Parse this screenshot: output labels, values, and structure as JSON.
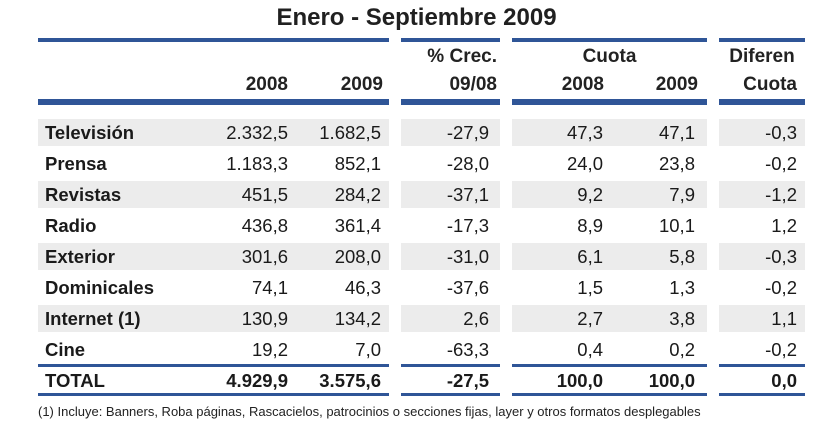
{
  "title": "Enero - Septiembre 2009",
  "headers": {
    "y2008": "2008",
    "y2009": "2009",
    "crec_top": "% Crec.",
    "crec_bottom": "09/08",
    "cuota": "Cuota",
    "cuota_2008": "2008",
    "cuota_2009": "2009",
    "dif_top": "Diferen",
    "dif_bottom": "Cuota"
  },
  "rows": [
    {
      "label": "Televisión",
      "v2008": "2.332,5",
      "v2009": "1.682,5",
      "crec": "-27,9",
      "c2008": "47,3",
      "c2009": "47,1",
      "dif": "-0,3"
    },
    {
      "label": "Prensa",
      "v2008": "1.183,3",
      "v2009": "852,1",
      "crec": "-28,0",
      "c2008": "24,0",
      "c2009": "23,8",
      "dif": "-0,2"
    },
    {
      "label": "Revistas",
      "v2008": "451,5",
      "v2009": "284,2",
      "crec": "-37,1",
      "c2008": "9,2",
      "c2009": "7,9",
      "dif": "-1,2"
    },
    {
      "label": "Radio",
      "v2008": "436,8",
      "v2009": "361,4",
      "crec": "-17,3",
      "c2008": "8,9",
      "c2009": "10,1",
      "dif": "1,2"
    },
    {
      "label": "Exterior",
      "v2008": "301,6",
      "v2009": "208,0",
      "crec": "-31,0",
      "c2008": "6,1",
      "c2009": "5,8",
      "dif": "-0,3"
    },
    {
      "label": "Dominicales",
      "v2008": "74,1",
      "v2009": "46,3",
      "crec": "-37,6",
      "c2008": "1,5",
      "c2009": "1,3",
      "dif": "-0,2"
    },
    {
      "label": "Internet (1)",
      "v2008": "130,9",
      "v2009": "134,2",
      "crec": "2,6",
      "c2008": "2,7",
      "c2009": "3,8",
      "dif": "1,1"
    },
    {
      "label": "Cine",
      "v2008": "19,2",
      "v2009": "7,0",
      "crec": "-63,3",
      "c2008": "0,4",
      "c2009": "0,2",
      "dif": "-0,2"
    }
  ],
  "total": {
    "label": "TOTAL",
    "v2008": "4.929,9",
    "v2009": "3.575,6",
    "crec": "-27,5",
    "c2008": "100,0",
    "c2009": "100,0",
    "dif": "0,0"
  },
  "footnote": "(1) Incluye: Banners, Roba páginas, Rascacielos, patrocinios o secciones fijas, layer y otros formatos desplegables",
  "colors": {
    "band": "#2f5597",
    "row_shade": "#ececec"
  }
}
